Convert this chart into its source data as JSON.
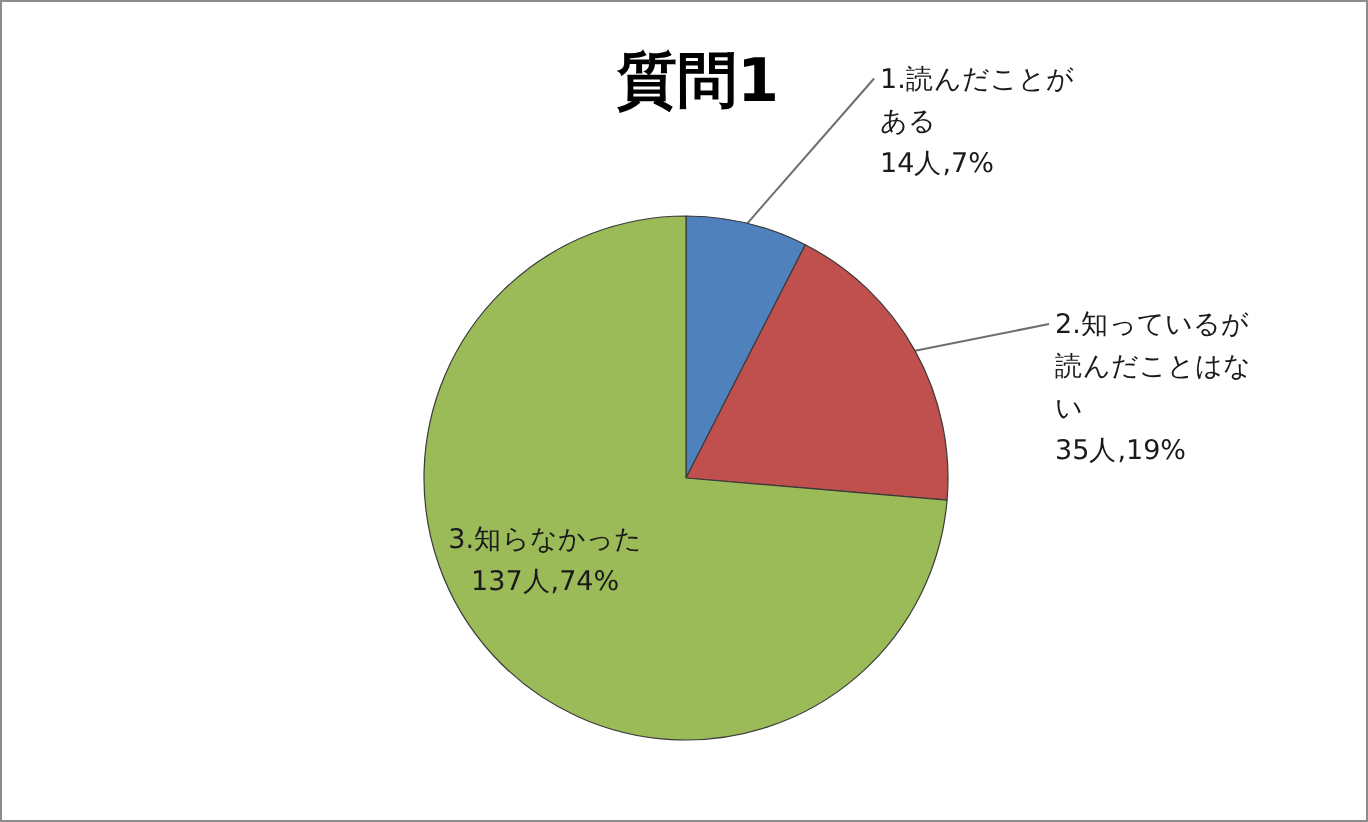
{
  "chart_data": {
    "type": "pie",
    "title": "質問1",
    "categories": [
      "1.読んだことがある",
      "2.知っているが読んだことはない",
      "3.知らなかった"
    ],
    "values": [
      14,
      35,
      137
    ],
    "colors": [
      "#4f81bd",
      "#c0504d",
      "#9bbb59"
    ],
    "value_labels": [
      "14人,7%",
      "35人,19%",
      "137人,74%"
    ]
  }
}
